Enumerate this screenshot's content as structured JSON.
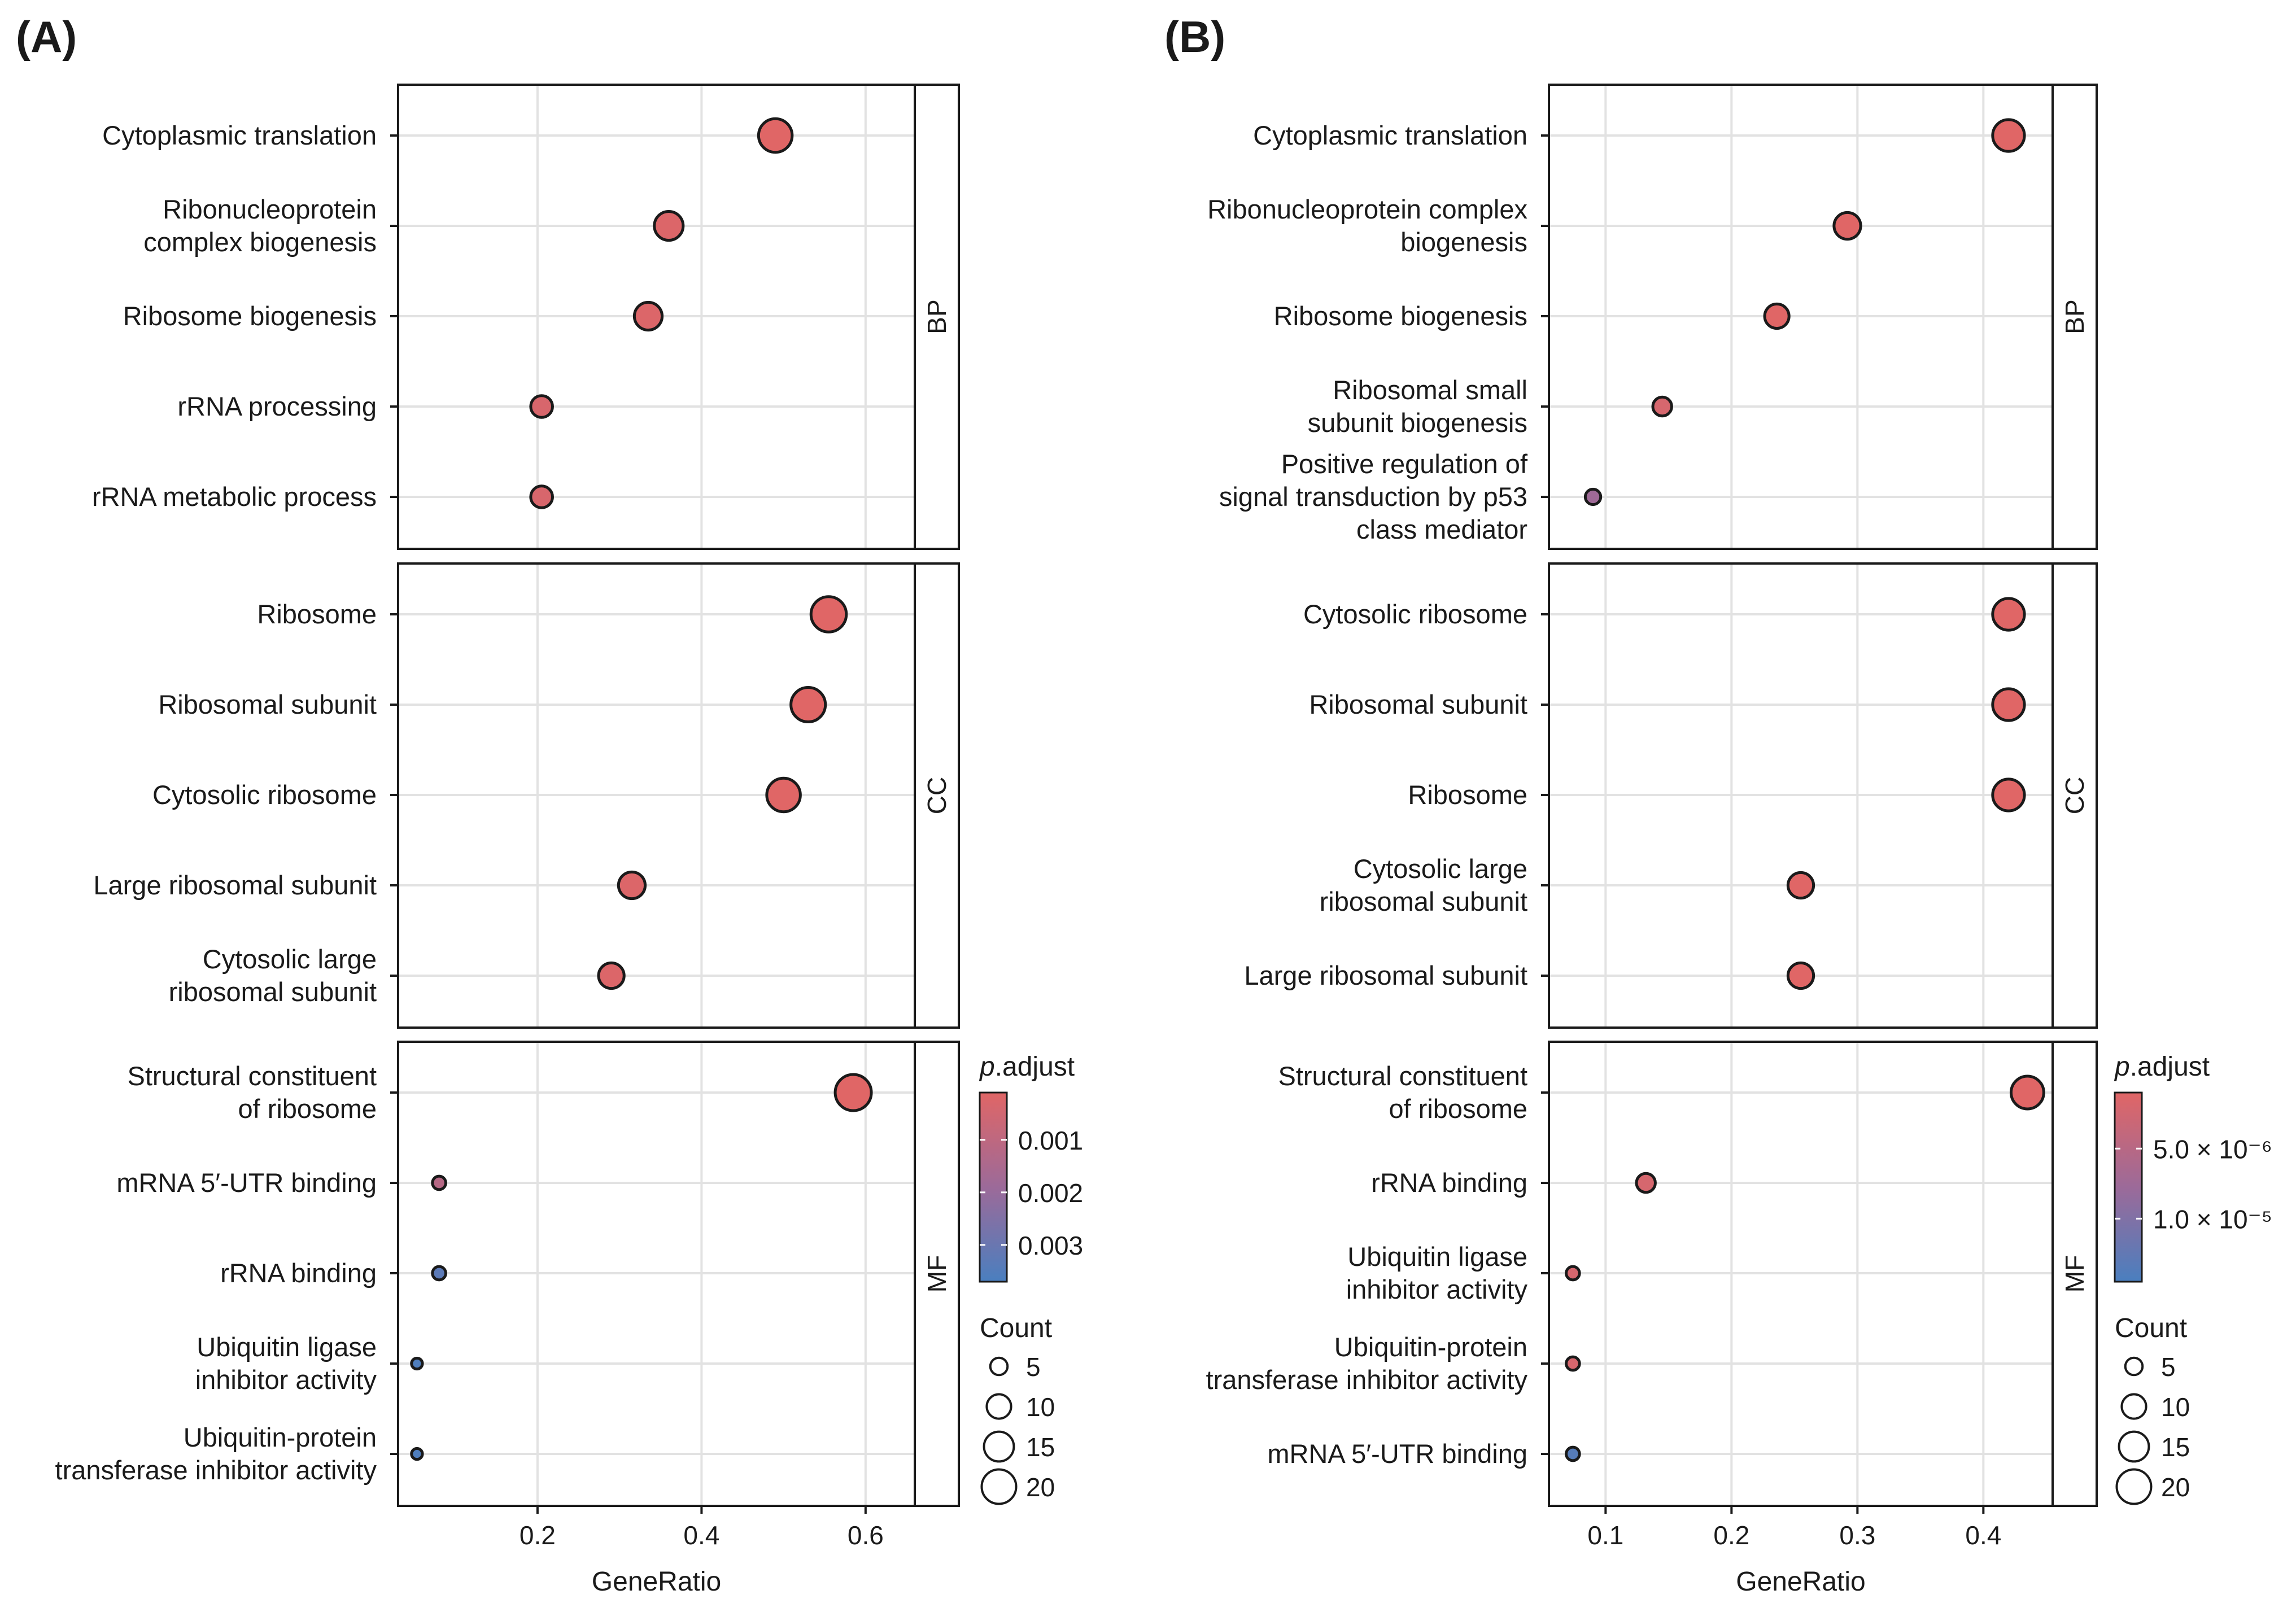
{
  "chart_data": [
    {
      "type": "scatter",
      "panel_label": "(A)",
      "xlabel": "GeneRatio",
      "xlim": [
        0.03,
        0.66
      ],
      "x_ticks": [
        0.2,
        0.4,
        0.6
      ],
      "x_tick_labels": [
        "0.2",
        "0.4",
        "0.6"
      ],
      "facets": [
        {
          "name": "BP",
          "terms": [
            {
              "label": [
                "Cytoplasmic translation"
              ],
              "ratio": 0.49,
              "count": 19,
              "p": 0.0001
            },
            {
              "label": [
                "Ribonucleoprotein",
                "complex biogenesis"
              ],
              "ratio": 0.36,
              "count": 14,
              "p": 0.0002
            },
            {
              "label": [
                "Ribosome biogenesis"
              ],
              "ratio": 0.335,
              "count": 13,
              "p": 0.0002
            },
            {
              "label": [
                "rRNA processing"
              ],
              "ratio": 0.205,
              "count": 8,
              "p": 0.0003
            },
            {
              "label": [
                "rRNA metabolic process"
              ],
              "ratio": 0.205,
              "count": 8,
              "p": 0.0003
            }
          ]
        },
        {
          "name": "CC",
          "terms": [
            {
              "label": [
                "Ribosome"
              ],
              "ratio": 0.555,
              "count": 21,
              "p": 0.0001
            },
            {
              "label": [
                "Ribosomal subunit"
              ],
              "ratio": 0.53,
              "count": 20,
              "p": 0.0001
            },
            {
              "label": [
                "Cytosolic ribosome"
              ],
              "ratio": 0.5,
              "count": 19,
              "p": 0.0001
            },
            {
              "label": [
                "Large ribosomal subunit"
              ],
              "ratio": 0.315,
              "count": 12,
              "p": 0.0002
            },
            {
              "label": [
                "Cytosolic large",
                "ribosomal subunit"
              ],
              "ratio": 0.29,
              "count": 11,
              "p": 0.0002
            }
          ]
        },
        {
          "name": "MF",
          "terms": [
            {
              "label": [
                "Structural constituent",
                "of ribosome"
              ],
              "ratio": 0.585,
              "count": 22,
              "p": 0.0001
            },
            {
              "label": [
                "mRNA 5′-UTR binding"
              ],
              "ratio": 0.08,
              "count": 3,
              "p": 0.0012
            },
            {
              "label": [
                "rRNA binding"
              ],
              "ratio": 0.08,
              "count": 3,
              "p": 0.0033
            },
            {
              "label": [
                "Ubiquitin ligase",
                "inhibitor activity"
              ],
              "ratio": 0.053,
              "count": 2,
              "p": 0.0036
            },
            {
              "label": [
                "Ubiquitin-protein",
                "transferase inhibitor activity"
              ],
              "ratio": 0.053,
              "count": 2,
              "p": 0.0036
            }
          ]
        }
      ],
      "color_scale": {
        "title_italic": "p",
        "title_rest": ".adjust",
        "min": 0.0001,
        "max": 0.0037,
        "ticks": [
          0.001,
          0.002,
          0.003
        ],
        "tick_labels": [
          "0.001",
          "0.002",
          "0.003"
        ]
      },
      "size_legend": {
        "title": "Count",
        "values": [
          5,
          10,
          15,
          20
        ],
        "labels": [
          "5",
          "10",
          "15",
          "20"
        ],
        "max_count": 22
      }
    },
    {
      "type": "scatter",
      "panel_label": "(B)",
      "xlabel": "GeneRatio",
      "xlim": [
        0.055,
        0.455
      ],
      "x_ticks": [
        0.1,
        0.2,
        0.3,
        0.4
      ],
      "x_tick_labels": [
        "0.1",
        "0.2",
        "0.3",
        "0.4"
      ],
      "facets": [
        {
          "name": "BP",
          "terms": [
            {
              "label": [
                "Cytoplasmic translation"
              ],
              "ratio": 0.42,
              "count": 17,
              "p": 1e-06
            },
            {
              "label": [
                "Ribonucleoprotein complex",
                "biogenesis"
              ],
              "ratio": 0.292,
              "count": 12,
              "p": 1e-06
            },
            {
              "label": [
                "Ribosome biogenesis"
              ],
              "ratio": 0.236,
              "count": 10,
              "p": 1e-06
            },
            {
              "label": [
                "Ribosomal small",
                "subunit biogenesis"
              ],
              "ratio": 0.145,
              "count": 6,
              "p": 2e-06
            },
            {
              "label": [
                "Positive regulation of",
                "signal transduction by p53",
                "class mediator"
              ],
              "ratio": 0.09,
              "count": 4,
              "p": 7.5e-06
            }
          ]
        },
        {
          "name": "CC",
          "terms": [
            {
              "label": [
                "Cytosolic ribosome"
              ],
              "ratio": 0.42,
              "count": 17,
              "p": 1e-06
            },
            {
              "label": [
                "Ribosomal subunit"
              ],
              "ratio": 0.42,
              "count": 17,
              "p": 1e-06
            },
            {
              "label": [
                "Ribosome"
              ],
              "ratio": 0.42,
              "count": 17,
              "p": 1e-06
            },
            {
              "label": [
                "Cytosolic large",
                "ribosomal subunit"
              ],
              "ratio": 0.255,
              "count": 11,
              "p": 1e-06
            },
            {
              "label": [
                "Large ribosomal subunit"
              ],
              "ratio": 0.255,
              "count": 11,
              "p": 1e-06
            }
          ]
        },
        {
          "name": "MF",
          "terms": [
            {
              "label": [
                "Structural constituent",
                "of ribosome"
              ],
              "ratio": 0.435,
              "count": 18,
              "p": 1e-06
            },
            {
              "label": [
                "rRNA binding"
              ],
              "ratio": 0.132,
              "count": 6,
              "p": 2e-06
            },
            {
              "label": [
                "Ubiquitin ligase",
                "inhibitor activity"
              ],
              "ratio": 0.074,
              "count": 3,
              "p": 2e-06
            },
            {
              "label": [
                "Ubiquitin-protein",
                "transferase inhibitor activity"
              ],
              "ratio": 0.074,
              "count": 3,
              "p": 2e-06
            },
            {
              "label": [
                "mRNA 5′-UTR binding"
              ],
              "ratio": 0.074,
              "count": 3,
              "p": 1.35e-05
            }
          ]
        }
      ],
      "color_scale": {
        "title_italic": "p",
        "title_rest": ".adjust",
        "min": 1e-06,
        "max": 1.45e-05,
        "ticks": [
          5e-06,
          1e-05
        ],
        "tick_labels": [
          "5.0 × 10⁻⁶",
          "1.0 × 10⁻⁵"
        ]
      },
      "size_legend": {
        "title": "Count",
        "values": [
          5,
          10,
          15,
          20
        ],
        "labels": [
          "5",
          "10",
          "15",
          "20"
        ],
        "max_count": 22
      }
    }
  ],
  "colors": {
    "high": "#e06666",
    "mid": "#9c6a99",
    "low": "#4a7fbf",
    "grid": "#e2e2e2",
    "frame": "#1a1a1a"
  }
}
